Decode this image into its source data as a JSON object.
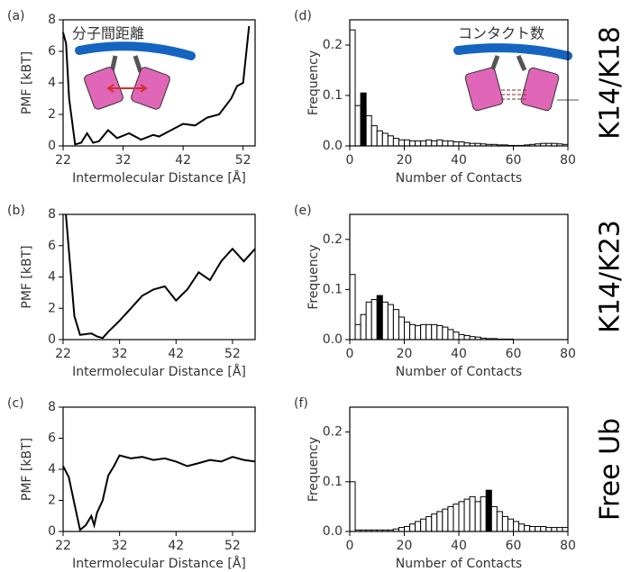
{
  "chart_data": [
    {
      "type": "line",
      "label": "(a)",
      "annotation": "分子間距離",
      "xlabel": "Intermolecular Distance [Å]",
      "ylabel": "PMF [kBT]",
      "color": "#000000",
      "x": [
        22,
        22.5,
        23,
        24,
        25,
        26,
        27,
        28,
        29.5,
        31,
        33,
        35,
        37,
        38,
        40,
        42,
        44,
        46,
        48,
        50,
        51,
        52,
        53
      ],
      "values": [
        7.2,
        6.5,
        3.0,
        0.1,
        0.2,
        0.8,
        0.2,
        0.3,
        1.0,
        0.5,
        0.8,
        0.4,
        0.7,
        0.6,
        1.0,
        1.4,
        1.3,
        1.8,
        2.0,
        3.0,
        3.8,
        4.0,
        7.6
      ],
      "xlim": [
        22,
        54
      ],
      "xticks": [
        22,
        32,
        42,
        52
      ],
      "ylim": [
        0,
        8
      ],
      "yticks": [
        0,
        2,
        4,
        6,
        8
      ]
    },
    {
      "type": "histogram",
      "label": "(d)",
      "annotation": "コンタクト数",
      "xlabel": "Number of Contacts",
      "ylabel": "Frequency",
      "color": "#ffffff",
      "edge_color": "#000000",
      "highlight": 2,
      "highlight_color": "#000000",
      "bins": [
        0,
        2,
        4,
        6,
        8,
        10,
        12,
        14,
        16,
        18,
        20,
        22,
        24,
        26,
        28,
        30,
        32,
        34,
        36,
        38,
        40,
        42,
        44,
        46,
        48,
        50,
        52,
        54,
        56,
        58,
        60,
        62,
        64,
        66,
        68,
        70,
        72,
        74,
        76,
        78,
        80
      ],
      "values": [
        0.23,
        0.08,
        0.105,
        0.06,
        0.04,
        0.03,
        0.025,
        0.02,
        0.015,
        0.012,
        0.012,
        0.01,
        0.01,
        0.01,
        0.012,
        0.01,
        0.012,
        0.01,
        0.01,
        0.008,
        0.008,
        0.006,
        0.005,
        0.005,
        0.004,
        0.003,
        0.003,
        0.002,
        0.002,
        0.001,
        0.001,
        0.001,
        0.002,
        0.003,
        0.004,
        0.005,
        0.005,
        0.005,
        0.004,
        0.003
      ],
      "xlim": [
        0,
        80
      ],
      "xticks": [
        0,
        20,
        40,
        60,
        80
      ],
      "ylim": [
        0,
        0.25
      ],
      "yticks": [
        {
          "value": 0,
          "label": "0.0"
        },
        0.1,
        0.2
      ]
    },
    {
      "type": "line",
      "label": "(b)",
      "xlabel": "Intermolecular Distance [Å]",
      "ylabel": "PMF [kBT]",
      "color": "#000000",
      "x": [
        22.5,
        24,
        25,
        27,
        28,
        29,
        30,
        32,
        34,
        36,
        38,
        40,
        42,
        44,
        46,
        48,
        50,
        52,
        54,
        56
      ],
      "values": [
        8,
        1.5,
        0.3,
        0.4,
        0.2,
        0.1,
        0.5,
        1.2,
        2.0,
        2.8,
        3.2,
        3.4,
        2.5,
        3.2,
        4.3,
        3.8,
        5.0,
        5.8,
        5.0,
        5.8
      ],
      "xlim": [
        22,
        56
      ],
      "xticks": [
        22,
        32,
        42,
        52
      ],
      "ylim": [
        0,
        8
      ],
      "yticks": [
        0,
        2,
        4,
        6,
        8
      ]
    },
    {
      "type": "histogram",
      "label": "(e)",
      "xlabel": "Number of Contacts",
      "ylabel": "Frequency",
      "color": "#ffffff",
      "edge_color": "#000000",
      "highlight": 5,
      "highlight_color": "#000000",
      "bins": [
        0,
        2,
        4,
        6,
        8,
        10,
        12,
        14,
        16,
        18,
        20,
        22,
        24,
        26,
        28,
        30,
        32,
        34,
        36,
        38,
        40,
        42,
        44,
        46,
        48,
        50,
        52,
        54,
        56,
        58,
        60,
        62,
        64,
        66,
        68,
        70,
        72,
        74,
        76,
        78,
        80
      ],
      "values": [
        0.13,
        0.03,
        0.05,
        0.075,
        0.08,
        0.088,
        0.075,
        0.07,
        0.06,
        0.045,
        0.035,
        0.03,
        0.028,
        0.03,
        0.03,
        0.03,
        0.028,
        0.025,
        0.02,
        0.015,
        0.01,
        0.008,
        0.006,
        0.005,
        0.003,
        0.002,
        0.002,
        0.001,
        0.001,
        0.001,
        0,
        0,
        0,
        0,
        0,
        0,
        0,
        0,
        0,
        0
      ],
      "xlim": [
        0,
        80
      ],
      "xticks": [
        0,
        20,
        40,
        60,
        80
      ],
      "ylim": [
        0,
        0.25
      ],
      "yticks": [
        {
          "value": 0,
          "label": "0.0"
        },
        0.1,
        0.2
      ]
    },
    {
      "type": "line",
      "label": "(c)",
      "xlabel": "Intermolecular Distance [Å]",
      "ylabel": "PMF [kBT]",
      "color": "#000000",
      "x": [
        22,
        23,
        24,
        25,
        26,
        27,
        27.5,
        28,
        29,
        30,
        31,
        32,
        34,
        36,
        38,
        40,
        42,
        44,
        46,
        48,
        50,
        52,
        54,
        56
      ],
      "values": [
        4.2,
        3.5,
        1.8,
        0.1,
        0.4,
        1.0,
        0.4,
        1.2,
        2.0,
        3.6,
        4.2,
        4.9,
        4.7,
        4.8,
        4.6,
        4.7,
        4.5,
        4.2,
        4.4,
        4.6,
        4.5,
        4.8,
        4.6,
        4.5
      ],
      "xlim": [
        22,
        56
      ],
      "xticks": [
        22,
        32,
        42,
        52
      ],
      "ylim": [
        0,
        8
      ],
      "yticks": [
        0,
        2,
        4,
        6,
        8
      ]
    },
    {
      "type": "histogram",
      "label": "(f)",
      "xlabel": "Number of Contacts",
      "ylabel": "Frequency",
      "color": "#ffffff",
      "edge_color": "#000000",
      "highlight": 25,
      "highlight_color": "#000000",
      "bins": [
        0,
        2,
        4,
        6,
        8,
        10,
        12,
        14,
        16,
        18,
        20,
        22,
        24,
        26,
        28,
        30,
        32,
        34,
        36,
        38,
        40,
        42,
        44,
        46,
        48,
        50,
        52,
        54,
        56,
        58,
        60,
        62,
        64,
        66,
        68,
        70,
        72,
        74,
        76,
        78,
        80
      ],
      "values": [
        0.1,
        0.003,
        0.003,
        0.003,
        0.003,
        0.003,
        0.003,
        0.003,
        0.005,
        0.008,
        0.01,
        0.015,
        0.02,
        0.025,
        0.03,
        0.035,
        0.04,
        0.045,
        0.05,
        0.055,
        0.06,
        0.065,
        0.07,
        0.06,
        0.07,
        0.083,
        0.05,
        0.04,
        0.03,
        0.025,
        0.02,
        0.015,
        0.012,
        0.01,
        0.01,
        0.01,
        0.008,
        0.008,
        0.008,
        0.008
      ],
      "xlim": [
        0,
        80
      ],
      "xticks": [
        0,
        20,
        40,
        60,
        80
      ],
      "ylim": [
        0,
        0.25
      ],
      "yticks": [
        {
          "value": 0,
          "label": "0.0"
        },
        0.1,
        0.2
      ]
    }
  ],
  "row_labels": [
    "K14/K18",
    "K14/K23",
    "Free Ub"
  ]
}
